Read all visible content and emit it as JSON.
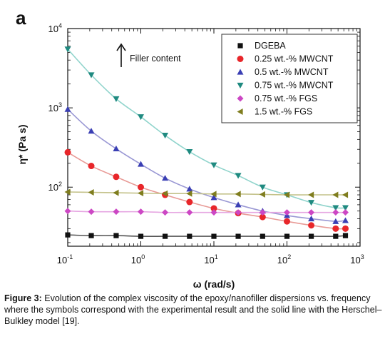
{
  "panel_label": "a",
  "caption": {
    "label": "Figure 3:",
    "text": " Evolution of the complex viscosity of the epoxy/nanofiller dispersions vs. frequency where the symbols correspond with the experimental result and the solid line with the Herschel–Bulkley model [19]."
  },
  "chart_data": {
    "type": "scatter",
    "xlabel": "ω (rad/s)",
    "ylabel": "η* (Pa s)",
    "x_scale": "log",
    "y_scale": "log",
    "xlim": [
      0.1,
      1000
    ],
    "ylim": [
      18,
      10000
    ],
    "x_ticks": [
      {
        "value": 0.1,
        "base": "10",
        "exp": "-1"
      },
      {
        "value": 1,
        "base": "10",
        "exp": "0"
      },
      {
        "value": 10,
        "base": "10",
        "exp": "1"
      },
      {
        "value": 100,
        "base": "10",
        "exp": "2"
      },
      {
        "value": 1000,
        "base": "10",
        "exp": "3"
      }
    ],
    "y_ticks": [
      {
        "value": 100,
        "base": "10",
        "exp": "2"
      },
      {
        "value": 1000,
        "base": "10",
        "exp": "3"
      },
      {
        "value": 10000,
        "base": "10",
        "exp": "4"
      }
    ],
    "annotation": {
      "text": "Filler content"
    },
    "legend_position": "top-right",
    "grid": false,
    "x": [
      0.1,
      0.21,
      0.46,
      1.0,
      2.15,
      4.64,
      10,
      21.5,
      46.4,
      100,
      215,
      464,
      631
    ],
    "series": [
      {
        "name": "DGEBA",
        "marker": "square",
        "color": "#111111",
        "line_color": "#555555",
        "values": [
          25,
          24.5,
          24.5,
          24,
          24,
          24,
          24,
          24,
          24,
          24,
          24,
          24,
          24.5
        ]
      },
      {
        "name": "0.25 wt.-% MWCNT",
        "marker": "circle",
        "color": "#e8262a",
        "line_color": "#e89a96",
        "values": [
          275,
          185,
          135,
          100,
          80,
          65,
          54,
          47,
          42,
          37,
          33,
          30,
          30
        ]
      },
      {
        "name": "0.5 wt.-% MWCNT",
        "marker": "triangle-up",
        "color": "#3a3fb4",
        "line_color": "#9a98d4",
        "values": [
          960,
          510,
          305,
          195,
          130,
          95,
          74,
          60,
          50,
          44,
          40,
          37,
          38
        ]
      },
      {
        "name": "0.75 wt.-% MWCNT",
        "marker": "triangle-down",
        "color": "#1f8a80",
        "line_color": "#90d4cc",
        "values": [
          5500,
          2600,
          1300,
          770,
          450,
          280,
          190,
          140,
          100,
          80,
          64,
          55,
          55
        ]
      },
      {
        "name": "0.75 wt.-% FGS",
        "marker": "diamond",
        "color": "#cc47c4",
        "line_color": "#e6a6e2",
        "values": [
          50,
          49,
          49,
          49,
          48,
          48,
          48,
          48,
          48,
          48,
          48,
          48,
          48
        ]
      },
      {
        "name": "1.5 wt.-% FGS",
        "marker": "triangle-left",
        "color": "#7f7d1e",
        "line_color": "#c4c28a",
        "values": [
          87,
          86,
          85,
          84,
          83,
          83,
          82,
          82,
          81,
          80,
          80,
          80,
          80
        ]
      }
    ]
  }
}
